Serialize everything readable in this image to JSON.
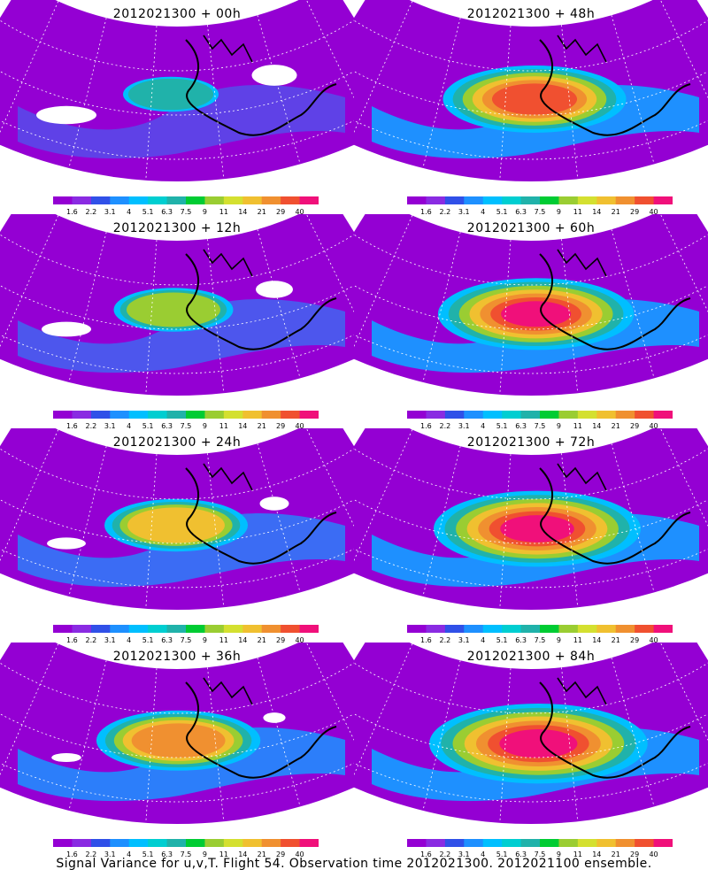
{
  "panels": [
    {
      "title": "2012021300 + 00h",
      "intensity": 0.15
    },
    {
      "title": "2012021300 + 48h",
      "intensity": 0.7
    },
    {
      "title": "2012021300 + 12h",
      "intensity": 0.3
    },
    {
      "title": "2012021300 + 60h",
      "intensity": 0.78
    },
    {
      "title": "2012021300 + 24h",
      "intensity": 0.45
    },
    {
      "title": "2012021300 + 72h",
      "intensity": 0.85
    },
    {
      "title": "2012021300 + 36h",
      "intensity": 0.58
    },
    {
      "title": "2012021300 + 84h",
      "intensity": 0.92
    }
  ],
  "colorbar": {
    "labels": [
      "1.6",
      "2.2",
      "3.1",
      "4",
      "5.1",
      "6.3",
      "7.5",
      "9",
      "11",
      "14",
      "21",
      "29",
      "40"
    ],
    "colors": [
      "#9400d3",
      "#8a2be2",
      "#3050e8",
      "#1e90ff",
      "#00bfff",
      "#00ced1",
      "#20b2aa",
      "#00cc33",
      "#9acd32",
      "#d4e030",
      "#f0c030",
      "#f09030",
      "#f05030",
      "#f0107a"
    ]
  },
  "caption": "Signal Variance for u,v,T. Flight 54. Observation time 2012021300. 2012021100 ensemble."
}
